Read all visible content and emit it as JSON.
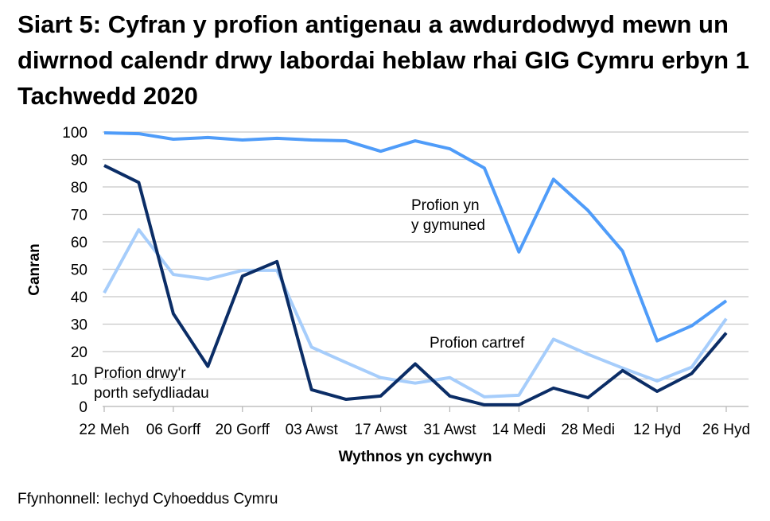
{
  "title": "Siart 5: Cyfran y profion antigenau a awdurdodwyd mewn un diwrnod calendr drwy labordai heblaw rhai GIG Cymru erbyn 1 Tachwedd 2020",
  "source": "Ffynhonnell: Iechyd Cyhoeddus Cymru",
  "chart_data": {
    "type": "line",
    "title": "Siart 5: Cyfran y profion antigenau a awdurdodwyd mewn un diwrnod calendr drwy labordai heblaw rhai GIG Cymru erbyn 1 Tachwedd 2020",
    "xlabel": "Wythnos yn cychwyn",
    "ylabel": "Canran",
    "ylim": [
      0,
      100
    ],
    "yticks": [
      0,
      10,
      20,
      30,
      40,
      50,
      60,
      70,
      80,
      90,
      100
    ],
    "grid": true,
    "x_tick_labels": [
      "22 Meh",
      "06 Gorff",
      "20 Gorff",
      "03 Awst",
      "17 Awst",
      "31 Awst",
      "14 Medi",
      "28 Medi",
      "12 Hyd",
      "26 Hyd"
    ],
    "x_count": 19,
    "series": [
      {
        "name": "Profion yn y gymuned",
        "label_lines": [
          "Profion yn",
          "y gymuned"
        ],
        "color": "#4f9cf9",
        "values": [
          99.7,
          99.4,
          97.4,
          98,
          97.1,
          97.7,
          97.1,
          96.8,
          93,
          96.8,
          93.9,
          86.9,
          56.3,
          82.8,
          71.4,
          56.6,
          23.9,
          29.4,
          38.5
        ]
      },
      {
        "name": "Profion cartref",
        "label_lines": [
          "Profion cartref"
        ],
        "color": "#a6cdfb",
        "values": [
          41.4,
          64.4,
          48.1,
          46.4,
          49.6,
          49.6,
          21.6,
          16,
          10.5,
          8.5,
          10.5,
          3.5,
          4.1,
          24.5,
          19,
          14,
          9.3,
          14.3,
          32
        ]
      },
      {
        "name": "Profion drwy'r porth sefydliadau",
        "label_lines": [
          "Profion drwy'r",
          "porth sefydliadau"
        ],
        "color": "#0b2d66",
        "values": [
          87.8,
          81.6,
          33.8,
          14.6,
          47.5,
          52.8,
          6.1,
          2.6,
          3.8,
          15.5,
          3.8,
          0.6,
          0.6,
          6.7,
          3.2,
          13.1,
          5.5,
          12,
          26.8
        ]
      }
    ]
  }
}
